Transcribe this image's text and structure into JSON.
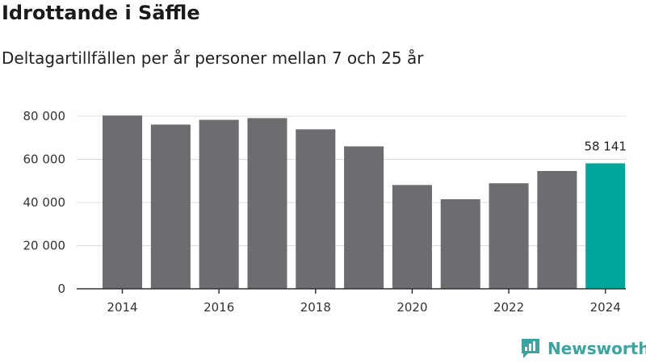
{
  "title": "Idrottande i Säffle",
  "subtitle": "Deltagartillfällen per år personer mellan 7 och 25 år",
  "brand": "Newsworthy",
  "colors": {
    "bar": "#6d6c70",
    "highlight": "#00a59b",
    "grid": "#dddddd",
    "axis": "#333333",
    "brand": "#3aa5a0"
  },
  "chart_data": {
    "type": "bar",
    "title": "Idrottande i Säffle",
    "subtitle": "Deltagartillfällen per år personer mellan 7 och 25 år",
    "xlabel": "",
    "ylabel": "",
    "categories": [
      "2014",
      "2015",
      "2016",
      "2017",
      "2018",
      "2019",
      "2020",
      "2021",
      "2022",
      "2023",
      "2024"
    ],
    "values": [
      80300,
      76100,
      78300,
      79100,
      73900,
      66000,
      48100,
      41500,
      48900,
      54600,
      58141
    ],
    "highlight_index": 10,
    "data_labels": {
      "10": "58 141"
    },
    "ylim": [
      0,
      80000
    ],
    "yticks": [
      0,
      20000,
      40000,
      60000,
      80000
    ],
    "ytick_labels": [
      "0",
      "20 000",
      "40 000",
      "60 000",
      "80 000"
    ],
    "xtick_labels": [
      "2014",
      "2016",
      "2018",
      "2020",
      "2022",
      "2024"
    ],
    "xtick_years": [
      "2014",
      "2016",
      "2018",
      "2020",
      "2022",
      "2024"
    ],
    "grid": true
  }
}
